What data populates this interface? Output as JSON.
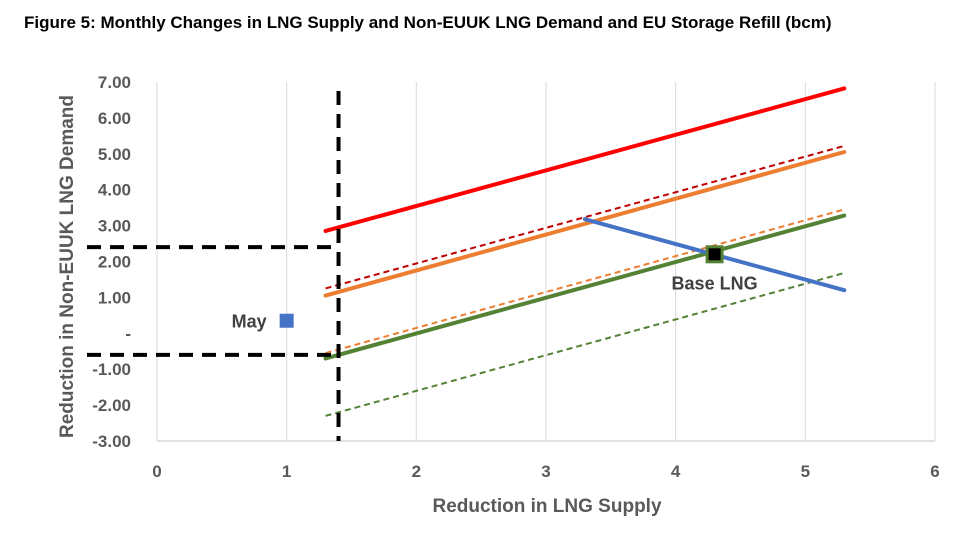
{
  "figure": {
    "title": "Figure 5: Monthly Changes in LNG Supply and Non-EUUK LNG Demand and EU Storage Refill (bcm)"
  },
  "chart_data": {
    "type": "line",
    "title": "Figure 5: Monthly Changes in LNG Supply and Non-EUUK LNG Demand and EU Storage Refill (bcm)",
    "xlabel": "Reduction in LNG Supply",
    "ylabel": "Reduction in Non-EUUK LNG Demand",
    "xlim": [
      0,
      6
    ],
    "ylim": [
      -3,
      7
    ],
    "x_ticks": [
      "0",
      "1",
      "2",
      "3",
      "4",
      "5",
      "6"
    ],
    "y_ticks": [
      "-3.00",
      "-2.00",
      "-1.00",
      "-",
      "1.00",
      "2.00",
      "3.00",
      "4.00",
      "5.00",
      "6.00",
      "7.00"
    ],
    "grid": "vertical",
    "legend": "none",
    "series": [
      {
        "color": "#ff0000",
        "style": "solid",
        "width": 4,
        "x": [
          1.3,
          5.3
        ],
        "y": [
          2.85,
          6.82
        ]
      },
      {
        "color": "#c00000",
        "style": "dashed",
        "width": 2,
        "x": [
          1.3,
          5.3
        ],
        "y": [
          1.25,
          5.22
        ]
      },
      {
        "color": "#ed7d31",
        "style": "solid",
        "width": 4,
        "x": [
          1.3,
          5.3
        ],
        "y": [
          1.05,
          5.05
        ]
      },
      {
        "color": "#ed7d31",
        "style": "dashed",
        "width": 2,
        "x": [
          1.3,
          5.3
        ],
        "y": [
          -0.55,
          3.45
        ]
      },
      {
        "color": "#548235",
        "style": "solid",
        "width": 4,
        "x": [
          1.3,
          5.3
        ],
        "y": [
          -0.7,
          3.28
        ]
      },
      {
        "color": "#548235",
        "style": "dashed",
        "width": 2,
        "x": [
          1.3,
          5.3
        ],
        "y": [
          -2.3,
          1.68
        ]
      },
      {
        "color": "#4472c4",
        "style": "solid",
        "width": 4,
        "x": [
          3.3,
          5.3
        ],
        "y": [
          3.18,
          1.2
        ]
      }
    ],
    "reference_lines": [
      {
        "orientation": "vertical",
        "x": 1.4,
        "y_range": [
          -3,
          6.75
        ]
      },
      {
        "orientation": "horizontal",
        "y": 2.4,
        "x_range": [
          0,
          1.4
        ]
      },
      {
        "orientation": "horizontal",
        "y": -0.6,
        "x_range": [
          0,
          1.4
        ]
      }
    ],
    "points": [
      {
        "label": "May",
        "x": 1.0,
        "y": 0.35,
        "color": "#4472c4"
      },
      {
        "label": "Base LNG",
        "x": 4.3,
        "y": 2.2,
        "color": "#000000"
      }
    ]
  }
}
